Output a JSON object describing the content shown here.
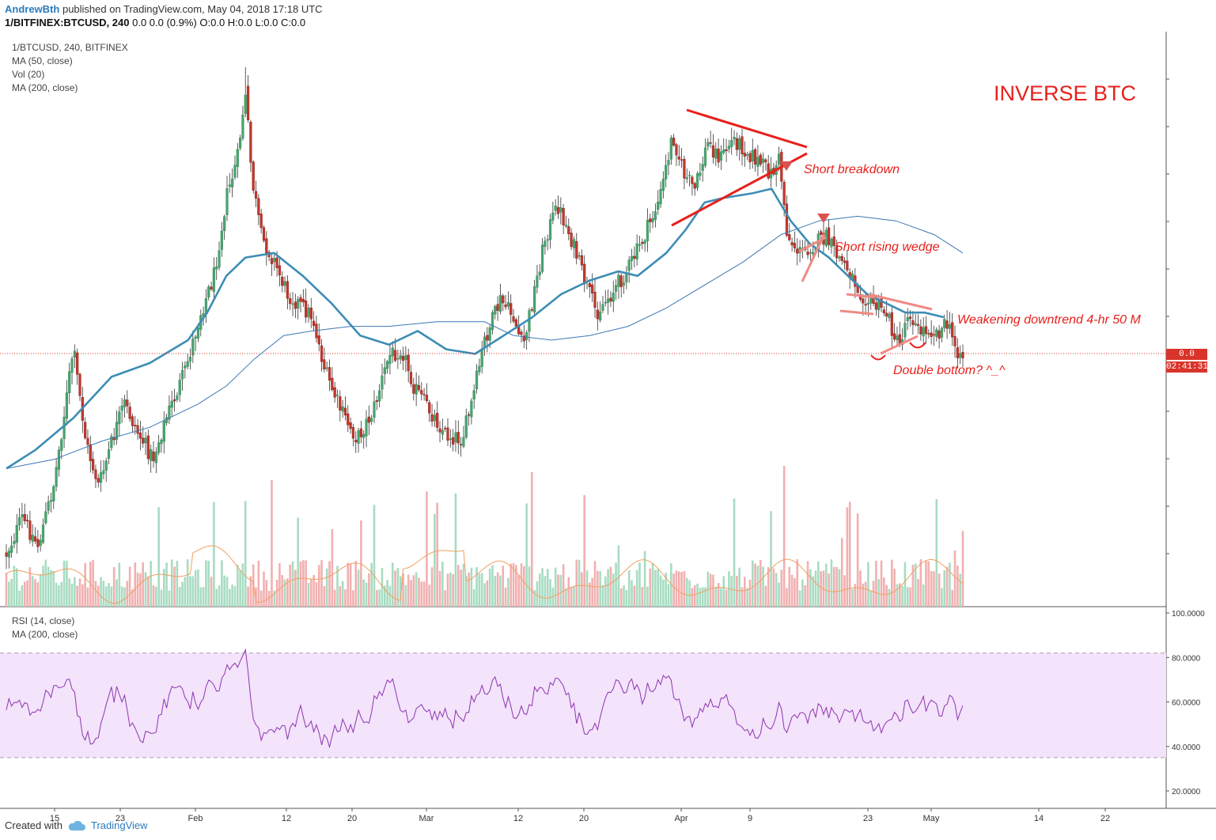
{
  "header": {
    "author": "AndrewBth",
    "published": "published on TradingView.com, May 04, 2018 17:18 UTC",
    "symbol_line_bold": "1/BITFINEX:BTCUSD, 240",
    "symbol_line_values": "0.0 0.0 (0.9%) O:0.0 H:0.0 L:0.0 C:0.0"
  },
  "legend": {
    "symbol": "1/BTCUSD, 240, BITFINEX",
    "ma50": "MA (50, close)",
    "vol": "Vol (20)",
    "ma200": "MA (200, close)"
  },
  "rsi_legend": {
    "rsi": "RSI (14, close)",
    "ma": "MA (200, close)"
  },
  "price_axis": {
    "last_price": "0.0",
    "countdown": "02:41:31"
  },
  "chart_data": {
    "type": "candlestick",
    "title": "INVERSE BTC",
    "x_ticks": [
      "15",
      "23",
      "Feb",
      "12",
      "20",
      "Mar",
      "12",
      "20",
      "Apr",
      "9",
      "23",
      "May",
      "14",
      "22"
    ],
    "rsi_ticks": [
      "100.0000",
      "80.0000",
      "60.0000",
      "40.0000",
      "20.0000"
    ],
    "rsi_band": [
      35,
      82
    ],
    "ma50_path": [
      [
        0,
        0.78
      ],
      [
        0.03,
        0.74
      ],
      [
        0.07,
        0.67
      ],
      [
        0.11,
        0.58
      ],
      [
        0.15,
        0.55
      ],
      [
        0.19,
        0.5
      ],
      [
        0.21,
        0.44
      ],
      [
        0.23,
        0.36
      ],
      [
        0.25,
        0.32
      ],
      [
        0.28,
        0.31
      ],
      [
        0.31,
        0.36
      ],
      [
        0.34,
        0.42
      ],
      [
        0.37,
        0.49
      ],
      [
        0.4,
        0.51
      ],
      [
        0.43,
        0.48
      ],
      [
        0.46,
        0.52
      ],
      [
        0.49,
        0.53
      ],
      [
        0.52,
        0.49
      ],
      [
        0.55,
        0.45
      ],
      [
        0.58,
        0.4
      ],
      [
        0.61,
        0.37
      ],
      [
        0.64,
        0.35
      ],
      [
        0.66,
        0.36
      ],
      [
        0.69,
        0.31
      ],
      [
        0.71,
        0.26
      ],
      [
        0.73,
        0.2
      ],
      [
        0.75,
        0.19
      ],
      [
        0.78,
        0.18
      ],
      [
        0.8,
        0.17
      ],
      [
        0.82,
        0.24
      ],
      [
        0.84,
        0.29
      ],
      [
        0.86,
        0.32
      ],
      [
        0.88,
        0.36
      ],
      [
        0.9,
        0.4
      ],
      [
        0.92,
        0.42
      ],
      [
        0.94,
        0.44
      ],
      [
        0.96,
        0.44
      ],
      [
        0.98,
        0.45
      ]
    ],
    "ma200_path": [
      [
        0,
        0.78
      ],
      [
        0.05,
        0.76
      ],
      [
        0.1,
        0.72
      ],
      [
        0.15,
        0.69
      ],
      [
        0.2,
        0.64
      ],
      [
        0.23,
        0.6
      ],
      [
        0.26,
        0.54
      ],
      [
        0.29,
        0.49
      ],
      [
        0.32,
        0.48
      ],
      [
        0.36,
        0.47
      ],
      [
        0.4,
        0.47
      ],
      [
        0.45,
        0.46
      ],
      [
        0.5,
        0.46
      ],
      [
        0.53,
        0.49
      ],
      [
        0.57,
        0.5
      ],
      [
        0.61,
        0.49
      ],
      [
        0.65,
        0.47
      ],
      [
        0.69,
        0.43
      ],
      [
        0.73,
        0.38
      ],
      [
        0.77,
        0.33
      ],
      [
        0.81,
        0.27
      ],
      [
        0.85,
        0.24
      ],
      [
        0.89,
        0.23
      ],
      [
        0.93,
        0.24
      ],
      [
        0.97,
        0.27
      ],
      [
        1.0,
        0.31
      ]
    ],
    "annotations": [
      {
        "text": "Short breakdown"
      },
      {
        "text": "Short rising wedge"
      },
      {
        "text": "Weakening downtrend 4-hr 50 M"
      },
      {
        "text": "Double bottom? ^_^"
      }
    ]
  },
  "footer": {
    "created_with": "Created with",
    "brand": "TradingView"
  }
}
